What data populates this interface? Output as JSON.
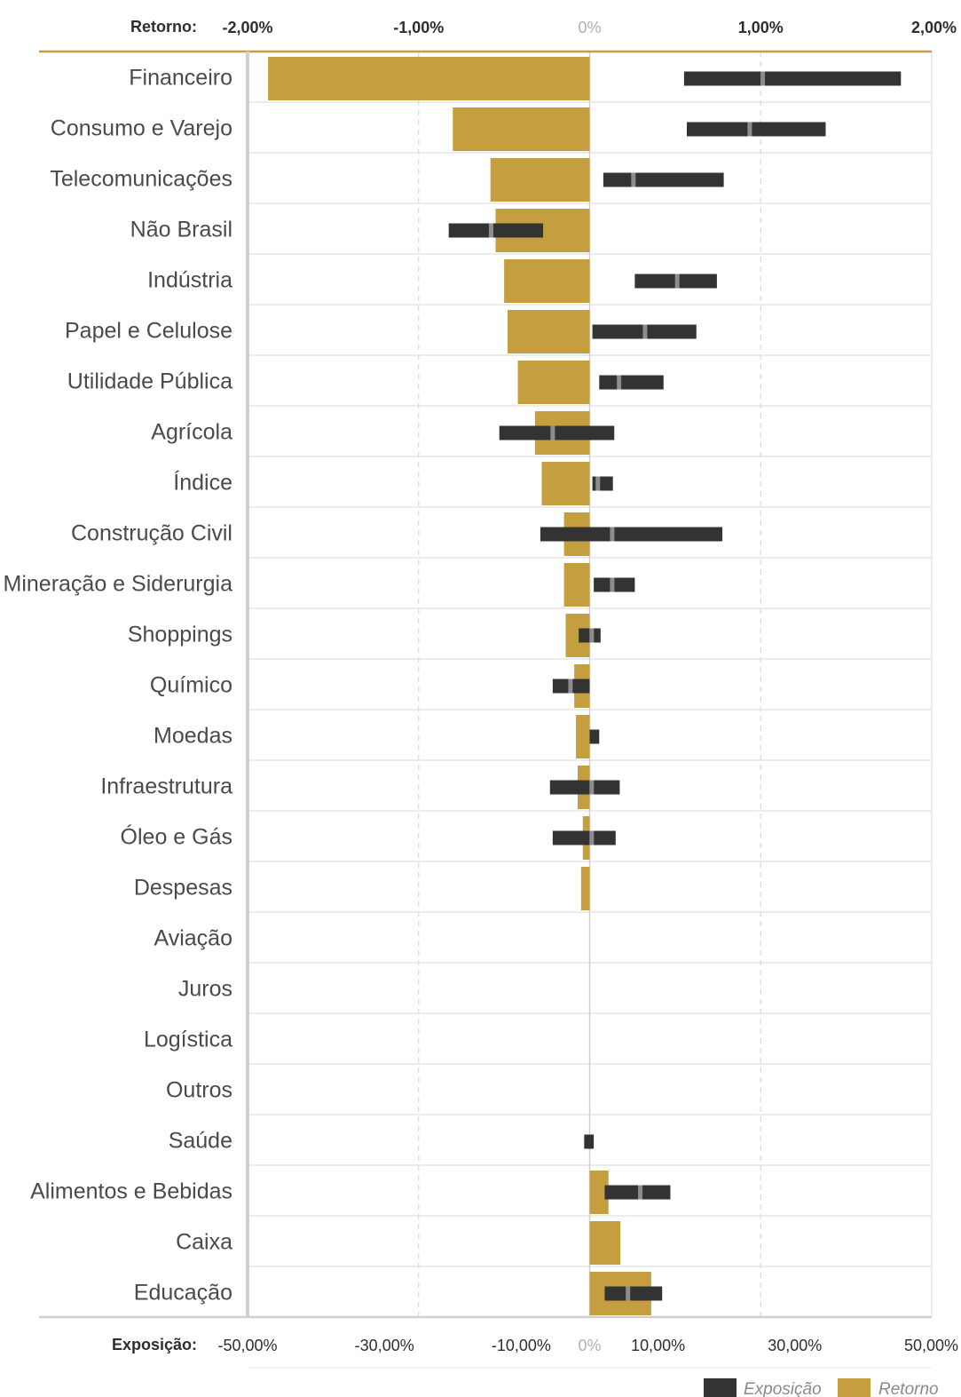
{
  "chart_data": {
    "type": "bar",
    "top_axis": {
      "title": "Retorno:",
      "ticks": [
        "-2,00%",
        "-1,00%",
        "0%",
        "1,00%",
        "2,00%"
      ],
      "tick_values": [
        -2,
        -1,
        0,
        1,
        2
      ],
      "range": [
        -2,
        2
      ]
    },
    "bottom_axis": {
      "title": "Exposição:",
      "ticks": [
        "-50,00%",
        "-30,00%",
        "-10,00%",
        "0%",
        "10,00%",
        "30,00%",
        "50,00%"
      ],
      "tick_values": [
        -50,
        -30,
        -10,
        0,
        10,
        30,
        50
      ],
      "range": [
        -50,
        50
      ]
    },
    "categories": [
      "Financeiro",
      "Consumo e Varejo",
      "Telecomunicações",
      "Não Brasil",
      "Indústria",
      "Papel e Celulose",
      "Utilidade Pública",
      "Agrícola",
      "Índice",
      "Construção Civil",
      "Mineração e Siderurgia",
      "Shoppings",
      "Químico",
      "Moedas",
      "Infraestrutura",
      "Óleo e Gás",
      "Despesas",
      "Aviação",
      "Juros",
      "Logística",
      "Outros",
      "Saúde",
      "Alimentos e Bebidas",
      "Caixa",
      "Educação"
    ],
    "series": [
      {
        "name": "Retorno",
        "color": "#c49e3f",
        "axis": "top",
        "values": [
          -1.88,
          -0.8,
          -0.58,
          -0.55,
          -0.5,
          -0.48,
          -0.42,
          -0.32,
          -0.28,
          -0.15,
          -0.15,
          -0.14,
          -0.09,
          -0.08,
          -0.07,
          -0.04,
          -0.05,
          0,
          0,
          0,
          0,
          0,
          0.11,
          0.18,
          0.36
        ]
      },
      {
        "name": "Exposição",
        "color": "#333333",
        "axis": "bottom",
        "ranges": [
          [
            13.8,
            45.5
          ],
          [
            14.2,
            34.5
          ],
          [
            2.0,
            19.6
          ],
          [
            -20.6,
            -6.8
          ],
          [
            6.6,
            18.6
          ],
          [
            0.4,
            15.6
          ],
          [
            1.4,
            10.8
          ],
          [
            -13.2,
            3.6
          ],
          [
            0.4,
            3.4
          ],
          [
            -7.2,
            19.4
          ],
          [
            0.6,
            6.6
          ],
          [
            -1.6,
            1.6
          ],
          [
            -5.4,
            0
          ],
          [
            0,
            1.4
          ],
          [
            -5.8,
            4.4
          ],
          [
            -5.4,
            3.8
          ],
          null,
          null,
          null,
          null,
          null,
          [
            -0.8,
            0.6
          ],
          [
            2.2,
            11.8
          ],
          null,
          [
            2.2,
            10.6
          ]
        ],
        "medians": [
          25.3,
          23.4,
          6.4,
          -14.4,
          12.8,
          8.1,
          4.3,
          -5.4,
          1.2,
          3.3,
          3.3,
          0.3,
          -2.8,
          null,
          0.3,
          0.3,
          null,
          null,
          null,
          null,
          null,
          null,
          7.4,
          null,
          5.6
        ]
      }
    ],
    "legend": {
      "placement": "bottom-right",
      "items": [
        {
          "label": "Exposição",
          "color": "#333333"
        },
        {
          "label": "Retorno",
          "color": "#c49e3f"
        }
      ]
    },
    "grid": true
  }
}
